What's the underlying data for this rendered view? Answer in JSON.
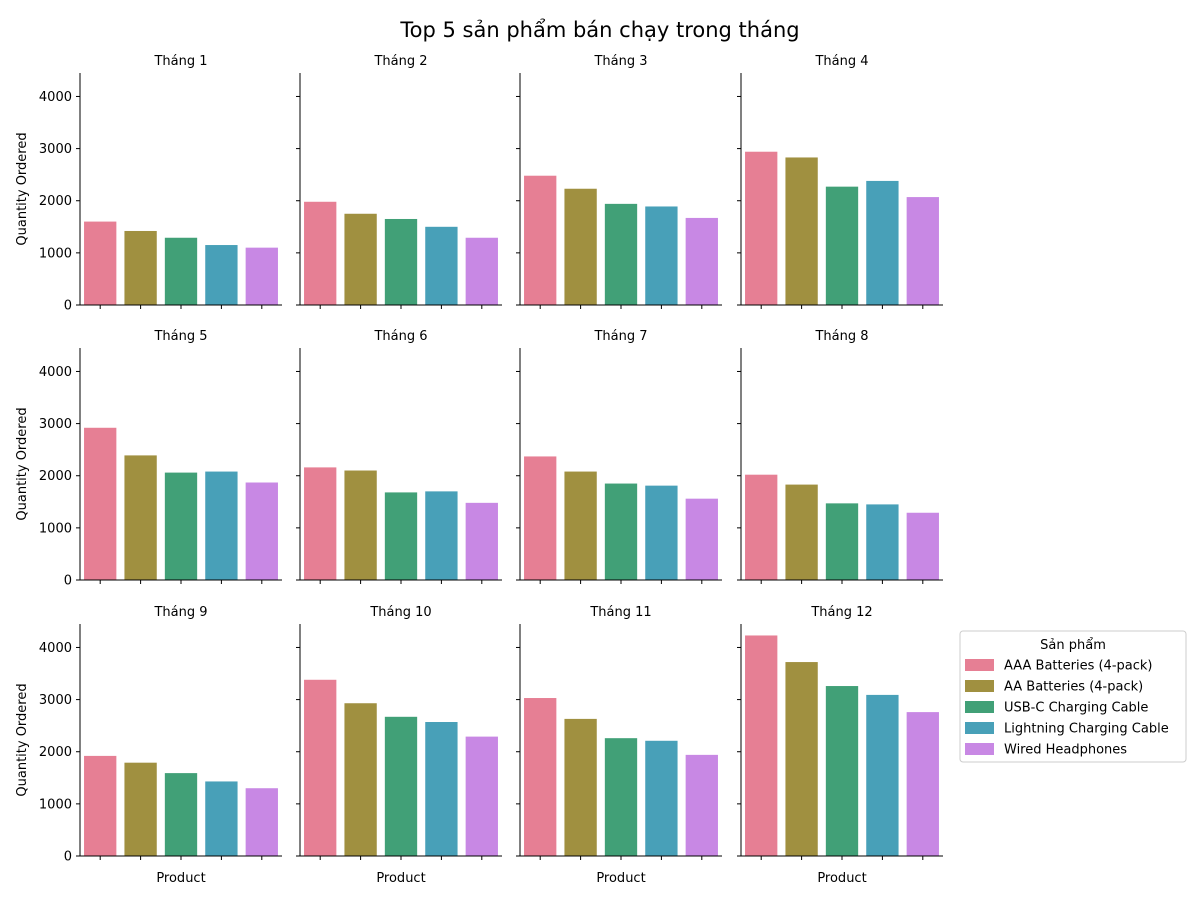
{
  "chart_data": {
    "type": "bar",
    "title": "Top 5 sản phẩm bán chạy trong tháng",
    "xlabel": "Product",
    "ylabel": "Quantity Ordered",
    "ylim": [
      0,
      4450
    ],
    "yticks": [
      0,
      1000,
      2000,
      3000,
      4000
    ],
    "grid": false,
    "legend": {
      "title": "Sản phẩm",
      "placement": "right",
      "entries": [
        {
          "name": "AAA Batteries (4-pack)",
          "color": "#e67f94"
        },
        {
          "name": "AA Batteries (4-pack)",
          "color": "#a09040"
        },
        {
          "name": "USB-C Charging Cable",
          "color": "#41a077"
        },
        {
          "name": "Lightning Charging Cable",
          "color": "#48a0b8"
        },
        {
          "name": "Wired Headphones",
          "color": "#c888e4"
        }
      ]
    },
    "categories": [
      "AAA Batteries (4-pack)",
      "AA Batteries (4-pack)",
      "USB-C Charging Cable",
      "Lightning Charging Cable",
      "Wired Headphones"
    ],
    "panels": [
      {
        "title": "Tháng 1",
        "values": [
          1600,
          1420,
          1290,
          1150,
          1100
        ]
      },
      {
        "title": "Tháng 2",
        "values": [
          1980,
          1750,
          1650,
          1500,
          1290
        ]
      },
      {
        "title": "Tháng 3",
        "values": [
          2480,
          2230,
          1940,
          1890,
          1670
        ]
      },
      {
        "title": "Tháng 4",
        "values": [
          2940,
          2830,
          2270,
          2380,
          2070
        ]
      },
      {
        "title": "Tháng 5",
        "values": [
          2920,
          2390,
          2060,
          2080,
          1870
        ]
      },
      {
        "title": "Tháng 6",
        "values": [
          2160,
          2100,
          1680,
          1700,
          1480
        ]
      },
      {
        "title": "Tháng 7",
        "values": [
          2370,
          2080,
          1850,
          1810,
          1560
        ]
      },
      {
        "title": "Tháng 8",
        "values": [
          2020,
          1830,
          1470,
          1450,
          1290
        ]
      },
      {
        "title": "Tháng 9",
        "values": [
          1920,
          1790,
          1590,
          1430,
          1300
        ]
      },
      {
        "title": "Tháng 10",
        "values": [
          3380,
          2930,
          2670,
          2570,
          2290
        ]
      },
      {
        "title": "Tháng 11",
        "values": [
          3030,
          2630,
          2260,
          2210,
          1940
        ]
      },
      {
        "title": "Tháng 12",
        "values": [
          4230,
          3720,
          3260,
          3090,
          2760
        ]
      }
    ]
  }
}
